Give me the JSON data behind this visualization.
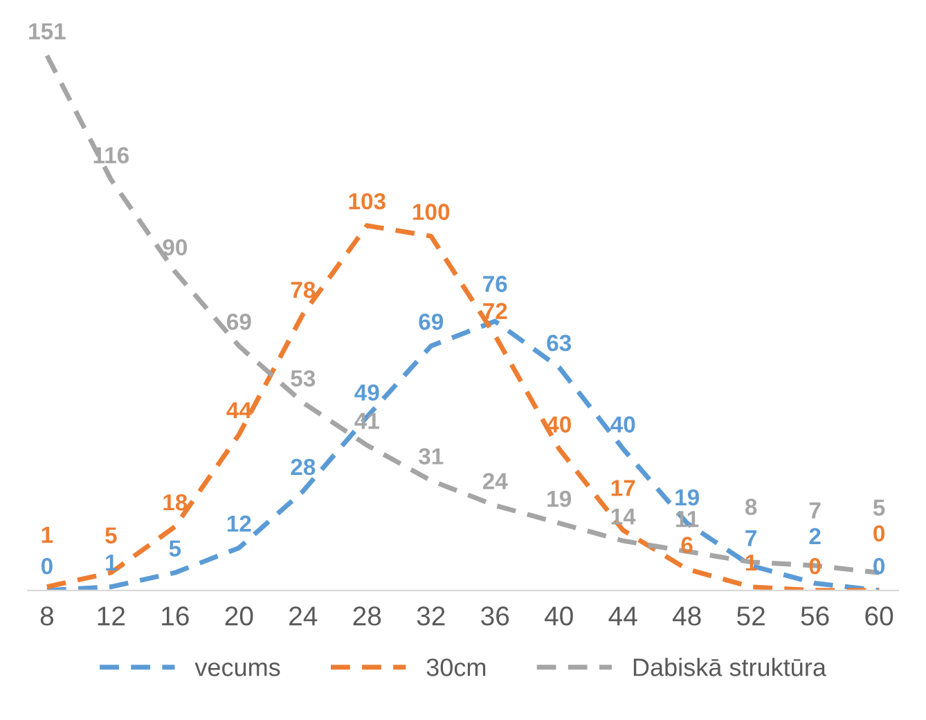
{
  "chart_data": {
    "type": "line",
    "categories": [
      "8",
      "12",
      "16",
      "20",
      "24",
      "28",
      "32",
      "36",
      "40",
      "44",
      "48",
      "52",
      "56",
      "60"
    ],
    "series": [
      {
        "name": "vecums",
        "color": "#5b9bd5",
        "values": [
          0,
          1,
          5,
          12,
          28,
          49,
          69,
          76,
          63,
          40,
          19,
          7,
          2,
          0
        ]
      },
      {
        "name": "30cm",
        "color": "#ed7d31",
        "values": [
          1,
          5,
          18,
          44,
          78,
          103,
          100,
          72,
          40,
          17,
          6,
          1,
          0,
          0
        ]
      },
      {
        "name": "Dabiskā struktūra",
        "color": "#a5a5a5",
        "values": [
          151,
          116,
          90,
          69,
          53,
          41,
          31,
          24,
          19,
          14,
          11,
          8,
          7,
          5
        ]
      }
    ],
    "data_labels": true,
    "line_style": "dashed",
    "grid": false,
    "legend": "bottom",
    "tick_labels": "x"
  }
}
